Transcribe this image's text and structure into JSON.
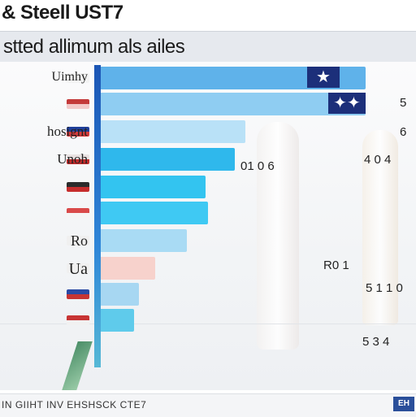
{
  "title": "& Steell UST7",
  "subtitle": "stted allimum als ailes",
  "footer": "IN GIIHT INV EHSHSCK CTE7",
  "footer_logo": "EH",
  "accent": "#1b55b5",
  "chart_data": {
    "type": "bar",
    "orientation": "horizontal",
    "title": "& Steell UST7",
    "subtitle": "stted allimum als ailes",
    "categories": [
      "Uimhy",
      "",
      "hosignt",
      "Unoh",
      "",
      "",
      "Ro",
      "Ua",
      "",
      ""
    ],
    "values": [
      100,
      100,
      55,
      51,
      40,
      41,
      33,
      21,
      15,
      13
    ],
    "colors": [
      "#5fb2ea",
      "#8fcdf2",
      "#b9e1f7",
      "#2fb8ec",
      "#33c4f0",
      "#3fc9f3",
      "#a9dbf4",
      "#f7d2cc",
      "#a7d7f2",
      "#5fcbeb"
    ],
    "flags": [
      {
        "c1": "#f3f3f3",
        "c2": "#f3f3f3"
      },
      {
        "c1": "#c43a3a",
        "c2": "#f3c9c9"
      },
      {
        "c1": "#1f3f9a",
        "c2": "#d53a3a"
      },
      {
        "c1": "#e9e2e2",
        "c2": "#c22b2b"
      },
      {
        "c1": "#2c2c2c",
        "c2": "#c62d2d"
      },
      {
        "c1": "#d94a4a",
        "c2": "#f5f5f5"
      },
      {
        "c1": "#f0f0f0",
        "c2": "#f0f0f0"
      },
      {
        "c1": "#f0f0f0",
        "c2": "#f0f0f0"
      },
      {
        "c1": "#2a4aa5",
        "c2": "#c73434"
      },
      {
        "c1": "#c73434",
        "c2": "#f1f1f1"
      }
    ],
    "annotations": [
      {
        "text": "01 0 6"
      },
      {
        "text": "5"
      },
      {
        "text": "6"
      },
      {
        "text": "4 0 4"
      },
      {
        "text": "R0 1"
      },
      {
        "text": "5 1 1 0"
      },
      {
        "text": "5 3 4"
      }
    ],
    "xlim": [
      0,
      100
    ],
    "grid": false,
    "legend": "none"
  }
}
